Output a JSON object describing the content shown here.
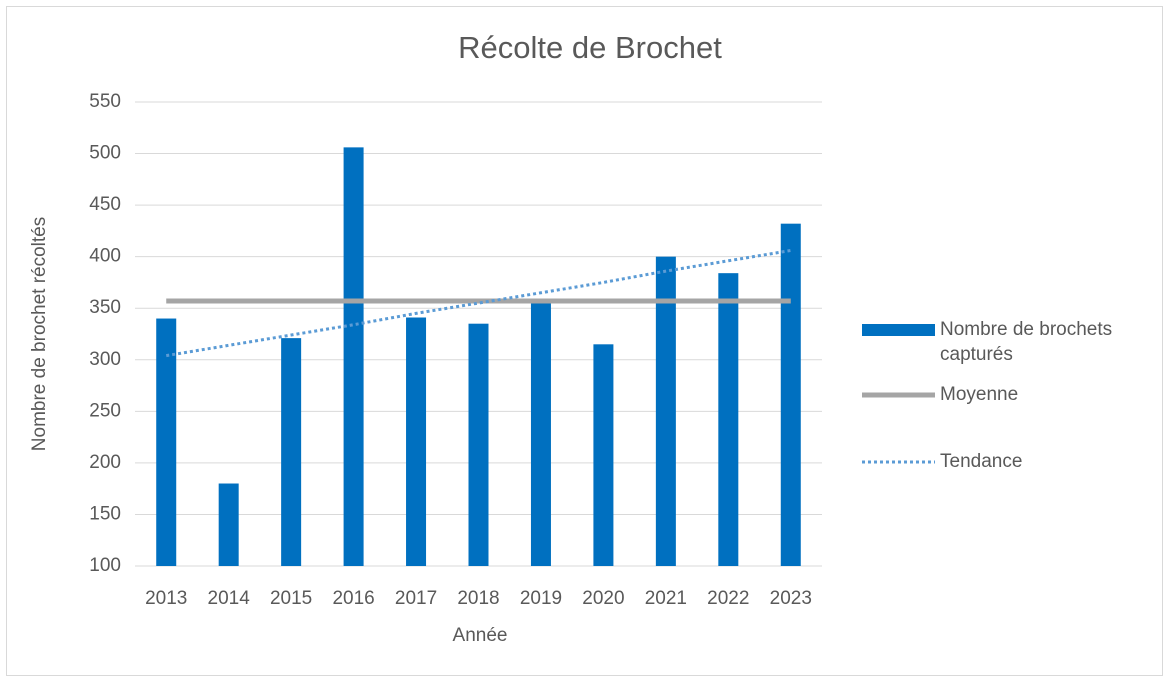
{
  "chart_data": {
    "type": "bar",
    "title": "Récolte de Brochet",
    "x_label": "Année",
    "y_label": "Nombre de brochet récoltés",
    "categories": [
      "2013",
      "2014",
      "2015",
      "2016",
      "2017",
      "2018",
      "2019",
      "2020",
      "2021",
      "2022",
      "2023"
    ],
    "series": [
      {
        "name": "Nombre de brochets capturés",
        "kind": "bar",
        "color": "#0070c0",
        "values": [
          340,
          180,
          321,
          506,
          341,
          335,
          355,
          315,
          400,
          384,
          432
        ]
      },
      {
        "name": "Moyenne",
        "kind": "line",
        "color": "#a5a5a5",
        "values": [
          357,
          357,
          357,
          357,
          357,
          357,
          357,
          357,
          357,
          357,
          357
        ]
      },
      {
        "name": "Tendance",
        "kind": "dotted",
        "color": "#5b9bd5",
        "values": [
          304,
          314,
          324,
          334,
          345,
          355,
          365,
          375,
          386,
          396,
          406
        ]
      }
    ],
    "ylim": [
      100,
      550
    ],
    "yticks": [
      100,
      150,
      200,
      250,
      300,
      350,
      400,
      450,
      500,
      550
    ],
    "grid": true,
    "legend": "right"
  }
}
